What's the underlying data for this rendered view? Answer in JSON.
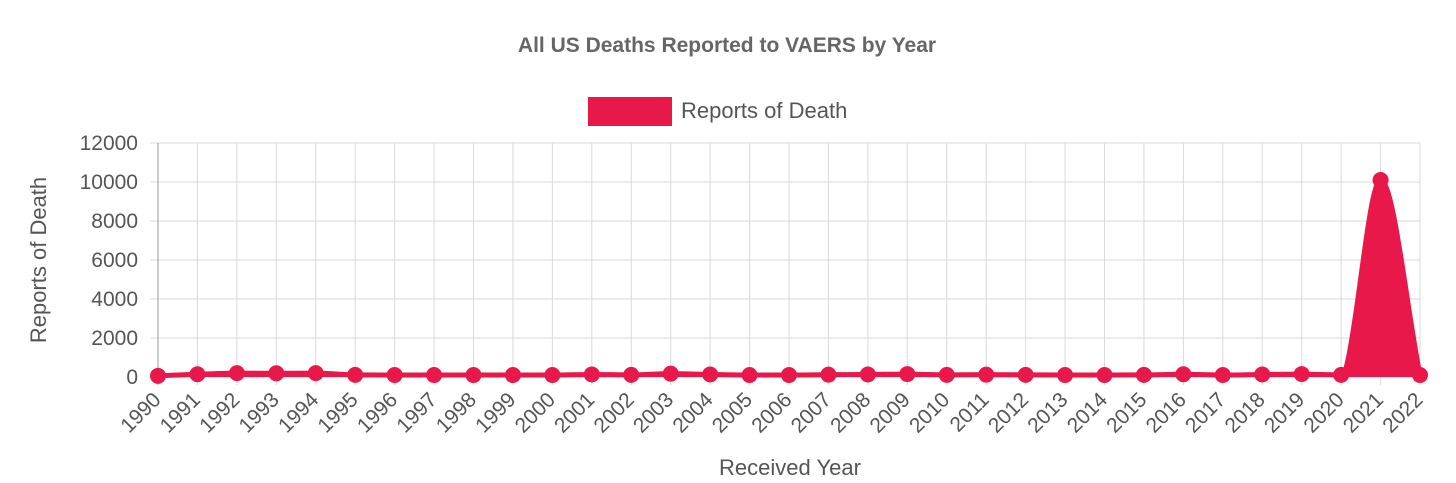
{
  "chart_data": {
    "type": "area",
    "title": "All US Deaths Reported to VAERS by Year",
    "xlabel": "Received Year",
    "ylabel": "Reports of Death",
    "categories": [
      "1990",
      "1991",
      "1992",
      "1993",
      "1994",
      "1995",
      "1996",
      "1997",
      "1998",
      "1999",
      "2000",
      "2001",
      "2002",
      "2003",
      "2004",
      "2005",
      "2006",
      "2007",
      "2008",
      "2009",
      "2010",
      "2011",
      "2012",
      "2013",
      "2014",
      "2015",
      "2016",
      "2017",
      "2018",
      "2019",
      "2020",
      "2021",
      "2022"
    ],
    "series": [
      {
        "name": "Reports of Death",
        "color": "#e8194a",
        "values": [
          60,
          140,
          200,
          190,
          200,
          110,
          100,
          100,
          100,
          100,
          100,
          130,
          110,
          170,
          130,
          100,
          100,
          120,
          130,
          150,
          110,
          120,
          110,
          100,
          100,
          110,
          140,
          100,
          130,
          150,
          110,
          10100,
          100
        ]
      }
    ],
    "ylim": [
      0,
      12000
    ],
    "yticks": [
      "0",
      "2000",
      "4000",
      "6000",
      "8000",
      "10000",
      "12000"
    ],
    "grid": true,
    "legend_position": "top"
  }
}
